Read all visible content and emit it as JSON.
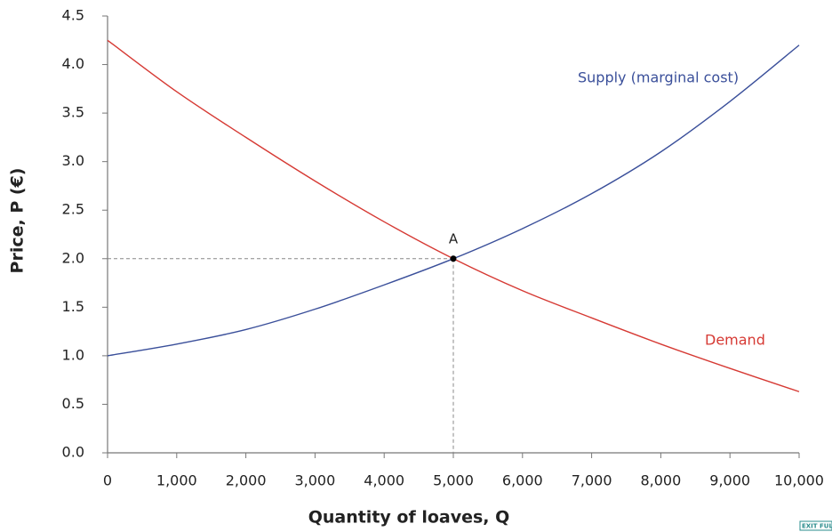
{
  "chart_data": {
    "type": "line",
    "x_label": "Quantity of loaves, Q",
    "y_label": "Price, P (€)",
    "x": [
      0,
      1000,
      2000,
      3000,
      4000,
      5000,
      6000,
      7000,
      8000,
      9000,
      10000
    ],
    "series": [
      {
        "name": "Supply (marginal cost)",
        "color": "#3a4f9a",
        "values": [
          1.0,
          1.12,
          1.27,
          1.48,
          1.73,
          2.0,
          2.31,
          2.67,
          3.1,
          3.62,
          4.2
        ]
      },
      {
        "name": "Demand",
        "color": "#d63a34",
        "values": [
          4.25,
          3.72,
          3.25,
          2.8,
          2.38,
          2.0,
          1.67,
          1.39,
          1.12,
          0.87,
          0.63
        ]
      }
    ],
    "point": {
      "label": "A",
      "x": 5000,
      "y": 2.0
    },
    "xlim": [
      0,
      10000
    ],
    "xticks": [
      0,
      {
        "value": 1000,
        "label": "1,000"
      },
      {
        "value": 2000,
        "label": "2,000"
      },
      {
        "value": 3000,
        "label": "3,000"
      },
      {
        "value": 4000,
        "label": "4,000"
      },
      {
        "value": 5000,
        "label": "5,000"
      },
      {
        "value": 6000,
        "label": "6,000"
      },
      {
        "value": 7000,
        "label": "7,000"
      },
      {
        "value": 8000,
        "label": "8,000"
      },
      {
        "value": 9000,
        "label": "9,000"
      },
      {
        "value": 10000,
        "label": "10,000"
      }
    ],
    "ylim": [
      0,
      4.5
    ],
    "yticks": [
      {
        "value": 0,
        "label": "0.0"
      },
      0.5,
      {
        "value": 1,
        "label": "1.0"
      },
      1.5,
      {
        "value": 2,
        "label": "2.0"
      },
      2.5,
      {
        "value": 3,
        "label": "3.0"
      },
      3.5,
      {
        "value": 4,
        "label": "4.0"
      },
      4.5
    ]
  },
  "exit_button": "EXIT FULL"
}
